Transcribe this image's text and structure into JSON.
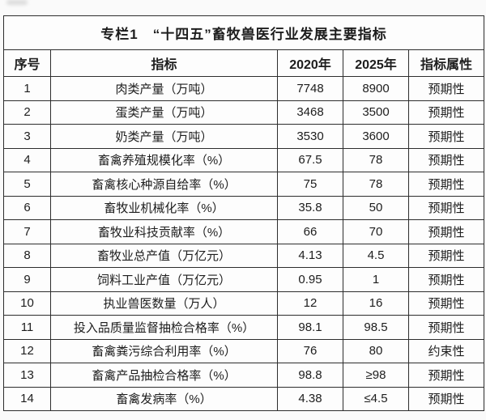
{
  "colors": {
    "page_background": "#fafafa",
    "table_background": "#fdfdfd",
    "border": "#2d2d2d",
    "text": "#1d1d1d"
  },
  "table": {
    "title": "专栏1　“十四五”畜牧兽医行业发展主要指标",
    "headers": [
      "序号",
      "指标",
      "2020年",
      "2025年",
      "指标属性"
    ],
    "rows": [
      [
        "1",
        "肉类产量（万吨）",
        "7748",
        "8900",
        "预期性"
      ],
      [
        "2",
        "蛋类产量（万吨）",
        "3468",
        "3500",
        "预期性"
      ],
      [
        "3",
        "奶类产量（万吨）",
        "3530",
        "3600",
        "预期性"
      ],
      [
        "4",
        "畜禽养殖规模化率（%）",
        "67.5",
        "78",
        "预期性"
      ],
      [
        "5",
        "畜禽核心种源自给率（%）",
        "75",
        "78",
        "预期性"
      ],
      [
        "6",
        "畜牧业机械化率（%）",
        "35.8",
        "50",
        "预期性"
      ],
      [
        "7",
        "畜牧业科技贡献率（%）",
        "66",
        "70",
        "预期性"
      ],
      [
        "8",
        "畜牧业总产值（万亿元）",
        "4.13",
        "4.5",
        "预期性"
      ],
      [
        "9",
        "饲料工业产值（万亿元）",
        "0.95",
        "1",
        "预期性"
      ],
      [
        "10",
        "执业兽医数量（万人）",
        "12",
        "16",
        "预期性"
      ],
      [
        "11",
        "投入品质量监督抽检合格率（%）",
        "98.1",
        "98.5",
        "预期性"
      ],
      [
        "12",
        "畜禽粪污综合利用率（%）",
        "76",
        "80",
        "约束性"
      ],
      [
        "13",
        "畜禽产品抽检合格率（%）",
        "98.8",
        "≥98",
        "预期性"
      ],
      [
        "14",
        "畜禽发病率（%）",
        "4.38",
        "≤4.5",
        "预期性"
      ]
    ]
  },
  "chart_data": {
    "type": "table",
    "title": "专栏1　“十四五”畜牧兽医行业发展主要指标",
    "columns": [
      "序号",
      "指标",
      "2020年",
      "2025年",
      "指标属性"
    ],
    "rows": [
      [
        "1",
        "肉类产量（万吨）",
        "7748",
        "8900",
        "预期性"
      ],
      [
        "2",
        "蛋类产量（万吨）",
        "3468",
        "3500",
        "预期性"
      ],
      [
        "3",
        "奶类产量（万吨）",
        "3530",
        "3600",
        "预期性"
      ],
      [
        "4",
        "畜禽养殖规模化率（%）",
        "67.5",
        "78",
        "预期性"
      ],
      [
        "5",
        "畜禽核心种源自给率（%）",
        "75",
        "78",
        "预期性"
      ],
      [
        "6",
        "畜牧业机械化率（%）",
        "35.8",
        "50",
        "预期性"
      ],
      [
        "7",
        "畜牧业科技贡献率（%）",
        "66",
        "70",
        "预期性"
      ],
      [
        "8",
        "畜牧业总产值（万亿元）",
        "4.13",
        "4.5",
        "预期性"
      ],
      [
        "9",
        "饲料工业产值（万亿元）",
        "0.95",
        "1",
        "预期性"
      ],
      [
        "10",
        "执业兽医数量（万人）",
        "12",
        "16",
        "预期性"
      ],
      [
        "11",
        "投入品质量监督抽检合格率（%）",
        "98.1",
        "98.5",
        "预期性"
      ],
      [
        "12",
        "畜禽粪污综合利用率（%）",
        "76",
        "80",
        "约束性"
      ],
      [
        "13",
        "畜禽产品抽检合格率（%）",
        "98.8",
        "≥98",
        "预期性"
      ],
      [
        "14",
        "畜禽发病率（%）",
        "4.38",
        "≤4.5",
        "预期性"
      ]
    ]
  }
}
